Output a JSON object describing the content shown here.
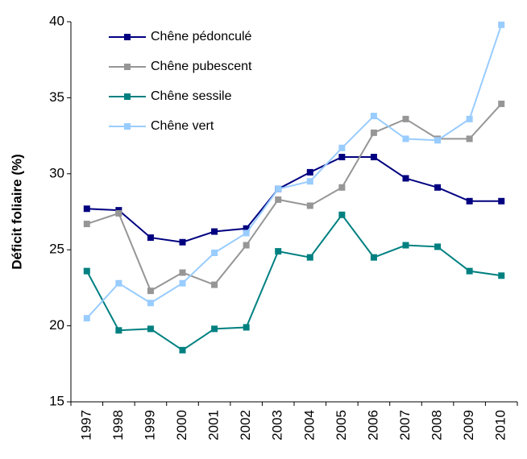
{
  "chart_data": {
    "type": "line",
    "y_label": "Déficit foliaire (%)",
    "categories": [
      "1997",
      "1998",
      "1999",
      "2000",
      "2001",
      "2002",
      "2003",
      "2004",
      "2005",
      "2006",
      "2007",
      "2008",
      "2009",
      "2010"
    ],
    "series": [
      {
        "name": "Chêne pédonculé",
        "color": "#000080",
        "values": [
          27.7,
          27.6,
          25.8,
          25.5,
          26.2,
          26.4,
          29.0,
          30.1,
          31.1,
          31.1,
          29.7,
          29.1,
          28.2,
          28.2
        ]
      },
      {
        "name": "Chêne pubescent",
        "color": "#969696",
        "values": [
          26.7,
          27.4,
          22.3,
          23.5,
          22.7,
          25.3,
          28.3,
          27.9,
          29.1,
          32.7,
          33.6,
          32.3,
          32.3,
          34.6
        ]
      },
      {
        "name": "Chêne sessile",
        "color": "#008080",
        "values": [
          23.6,
          19.7,
          19.8,
          18.4,
          19.8,
          19.9,
          24.9,
          24.5,
          27.3,
          24.5,
          25.3,
          25.2,
          23.6,
          23.3
        ]
      },
      {
        "name": "Chêne vert",
        "color": "#99ccff",
        "values": [
          20.5,
          22.8,
          21.5,
          22.8,
          24.8,
          26.1,
          29.0,
          29.5,
          31.7,
          33.8,
          32.3,
          32.2,
          33.6,
          39.8
        ]
      }
    ],
    "ylim": [
      15,
      40
    ],
    "yticks": [
      15,
      20,
      25,
      30,
      35,
      40
    ],
    "grid": false,
    "legend": "top-left"
  }
}
